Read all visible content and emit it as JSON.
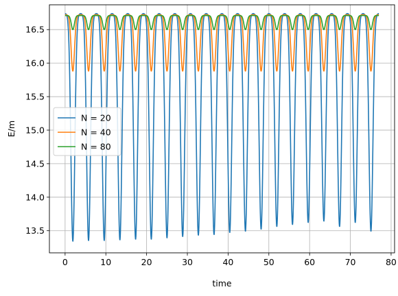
{
  "chart_data": {
    "type": "line",
    "title": "",
    "xlabel": "time",
    "ylabel": "E/m",
    "xlim": [
      -3.85,
      80.85
    ],
    "ylim": [
      13.17,
      16.87
    ],
    "xticks": [
      0,
      10,
      20,
      30,
      40,
      50,
      60,
      70,
      80
    ],
    "yticks": [
      13.5,
      14.0,
      14.5,
      15.0,
      15.5,
      16.0,
      16.5
    ],
    "ytick_labels": [
      "13.5",
      "14.0",
      "14.5",
      "15.0",
      "15.5",
      "16.0",
      "16.5"
    ],
    "grid": true,
    "legend_position": "center-left",
    "series": [
      {
        "name": "N = 20",
        "color": "#1f77b4",
        "period": 3.85,
        "max": 16.74,
        "x_min": [
          1.9,
          5.75,
          9.6,
          13.45,
          17.3,
          21.15,
          25.0,
          28.85,
          32.7,
          36.55,
          40.4,
          44.25,
          48.1,
          51.95,
          55.8,
          59.65,
          63.5,
          67.35,
          71.2,
          75.05
        ],
        "y_min": [
          13.34,
          13.35,
          13.35,
          13.36,
          13.37,
          13.37,
          13.39,
          13.41,
          13.43,
          13.44,
          13.47,
          13.49,
          13.52,
          13.56,
          13.59,
          13.62,
          13.64,
          13.56,
          13.62,
          13.49
        ]
      },
      {
        "name": "N = 40",
        "color": "#ff7f0e",
        "period": 3.85,
        "max": 16.72,
        "min": 15.88
      },
      {
        "name": "N = 80",
        "color": "#2ca02c",
        "period": 3.85,
        "max": 16.71,
        "min": 16.5
      }
    ],
    "x_range": [
      0,
      77
    ]
  }
}
